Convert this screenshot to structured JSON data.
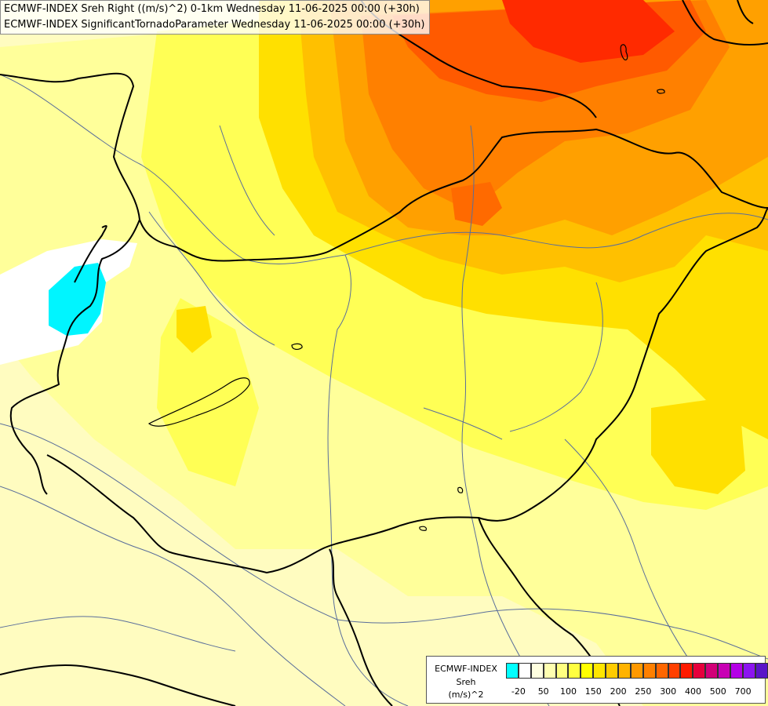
{
  "titles": {
    "line1": "ECMWF-INDEX Sreh Right ((m/s)^2) 0-1km Wednesday 11-06-2025 00:00 (+30h)",
    "line2": "ECMWF-INDEX SignificantTornadoParameter Wednesday 11-06-2025 00:00 (+30h)"
  },
  "legend": {
    "title_model": "ECMWF-INDEX",
    "title_var": "Sreh",
    "title_unit": "(m/s)^2",
    "colors": [
      "#00ffff",
      "#ffffff",
      "#ffffe0",
      "#ffffb0",
      "#ffff80",
      "#ffff40",
      "#ffff00",
      "#ffe600",
      "#ffcc00",
      "#ffb300",
      "#ff9900",
      "#ff8000",
      "#ff6600",
      "#ff4000",
      "#ff1a00",
      "#e6003c",
      "#d20078",
      "#c800b4",
      "#b400e6",
      "#8c14f0",
      "#5a14c8",
      "#3214a0",
      "#0a0a78"
    ],
    "ticks": [
      "-20",
      "50",
      "100",
      "150",
      "200",
      "250",
      "300",
      "400",
      "500",
      "700"
    ]
  },
  "colors": {
    "background": "#fffcc0",
    "border": "#000000",
    "river": "#5a6e9a"
  }
}
